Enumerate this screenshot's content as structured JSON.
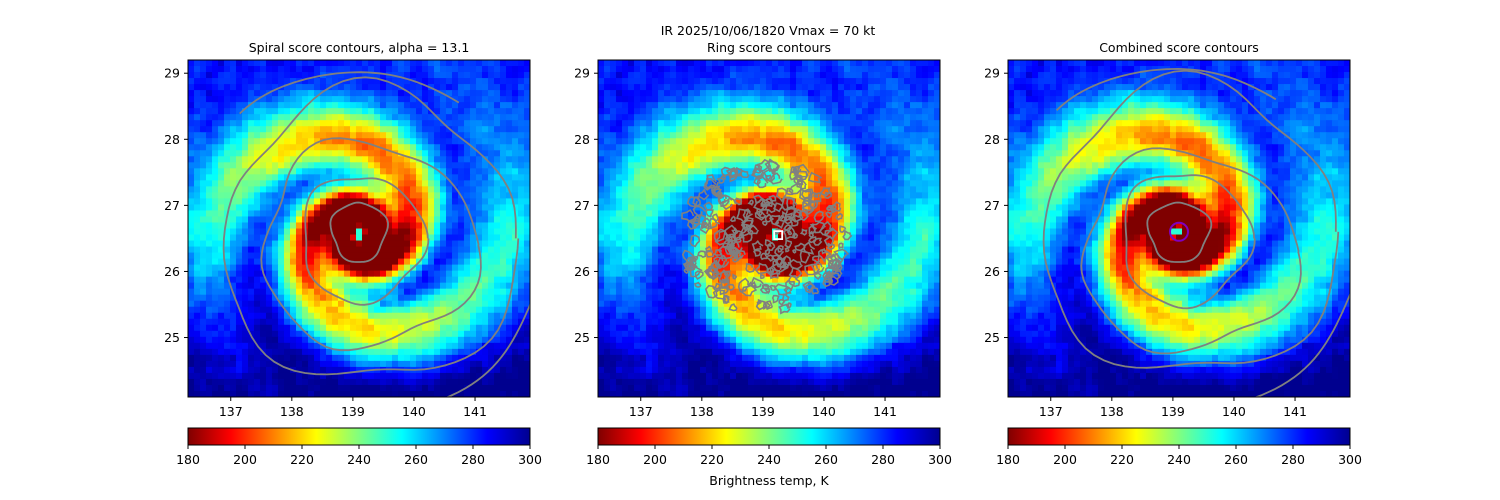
{
  "figure": {
    "suptitle_line1": "IR  2025/10/06/1820    Vmax = 70 kt",
    "colorbar_label": "Brightness temp, K"
  },
  "colormap": {
    "name": "jet_r",
    "stops": [
      "#7f0000",
      "#ff0000",
      "#ff8000",
      "#ffff00",
      "#80ff80",
      "#00ffff",
      "#0080ff",
      "#0000ff",
      "#00008f"
    ]
  },
  "contour_color": "#808080",
  "chart_data": [
    {
      "type": "heatmap",
      "title": "Spiral score contours, alpha = 13.1",
      "xlim": [
        136.3,
        141.9
      ],
      "ylim": [
        24.1,
        29.2
      ],
      "xticks": [
        137,
        138,
        139,
        140,
        141
      ],
      "yticks": [
        25,
        26,
        27,
        28,
        29
      ],
      "colorbar": {
        "range": [
          180,
          300
        ],
        "ticks": [
          180,
          200,
          220,
          240,
          260,
          280,
          300
        ]
      },
      "center": [
        139.1,
        26.55
      ],
      "contours": [
        {
          "cx": 139.1,
          "cy": 26.6,
          "rx": 0.45,
          "ry": 0.45
        },
        {
          "cx": 139.15,
          "cy": 26.5,
          "rx": 1.0,
          "ry": 0.95
        },
        {
          "cx": 139.25,
          "cy": 26.4,
          "rx": 1.75,
          "ry": 1.55
        },
        {
          "cx": 139.3,
          "cy": 26.5,
          "rx": 2.4,
          "ry": 2.2
        }
      ]
    },
    {
      "type": "heatmap",
      "title": "Ring score contours",
      "xlim": [
        136.3,
        141.9
      ],
      "ylim": [
        24.1,
        29.2
      ],
      "xticks": [
        137,
        138,
        139,
        140,
        141
      ],
      "yticks": [
        25,
        26,
        27,
        28,
        29
      ],
      "colorbar": {
        "range": [
          180,
          300
        ],
        "ticks": [
          180,
          200,
          220,
          240,
          260,
          280,
          300
        ]
      },
      "center": [
        139.2,
        26.55
      ],
      "ring_region": {
        "cx": 139.0,
        "cy": 26.5,
        "rx": 1.4,
        "ry": 1.15
      },
      "marker": {
        "x": 139.25,
        "y": 26.55,
        "shape": "square"
      }
    },
    {
      "type": "heatmap",
      "title": "Combined score contours",
      "xlim": [
        136.3,
        141.9
      ],
      "ylim": [
        24.1,
        29.2
      ],
      "xticks": [
        137,
        138,
        139,
        140,
        141
      ],
      "yticks": [
        25,
        26,
        27,
        28,
        29
      ],
      "colorbar": {
        "range": [
          180,
          300
        ],
        "ticks": [
          180,
          200,
          220,
          240,
          260,
          280,
          300
        ]
      },
      "center": [
        139.05,
        26.6
      ],
      "contours": [
        {
          "cx": 139.1,
          "cy": 26.6,
          "rx": 0.5,
          "ry": 0.45
        },
        {
          "cx": 139.2,
          "cy": 26.5,
          "rx": 1.05,
          "ry": 1.0
        },
        {
          "cx": 139.25,
          "cy": 26.3,
          "rx": 1.75,
          "ry": 1.5
        },
        {
          "cx": 139.3,
          "cy": 26.6,
          "rx": 2.4,
          "ry": 2.2
        }
      ],
      "marker": {
        "x": 139.1,
        "y": 26.6,
        "shape": "circle",
        "color": "#8000c0"
      }
    }
  ]
}
